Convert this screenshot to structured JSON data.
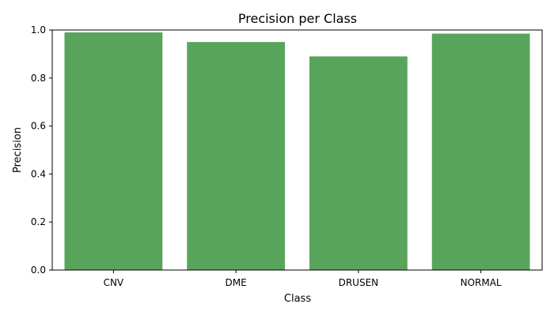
{
  "chart_data": {
    "type": "bar",
    "title": "Precision per Class",
    "xlabel": "Class",
    "ylabel": "Precision",
    "categories": [
      "CNV",
      "DME",
      "DRUSEN",
      "NORMAL"
    ],
    "values": [
      0.99,
      0.95,
      0.89,
      0.985
    ],
    "ylim": [
      0.0,
      1.0
    ],
    "yticks": [
      "0.0",
      "0.2",
      "0.4",
      "0.6",
      "0.8",
      "1.0"
    ],
    "bar_color": "#59a45b",
    "grid": false,
    "legend": "none"
  }
}
